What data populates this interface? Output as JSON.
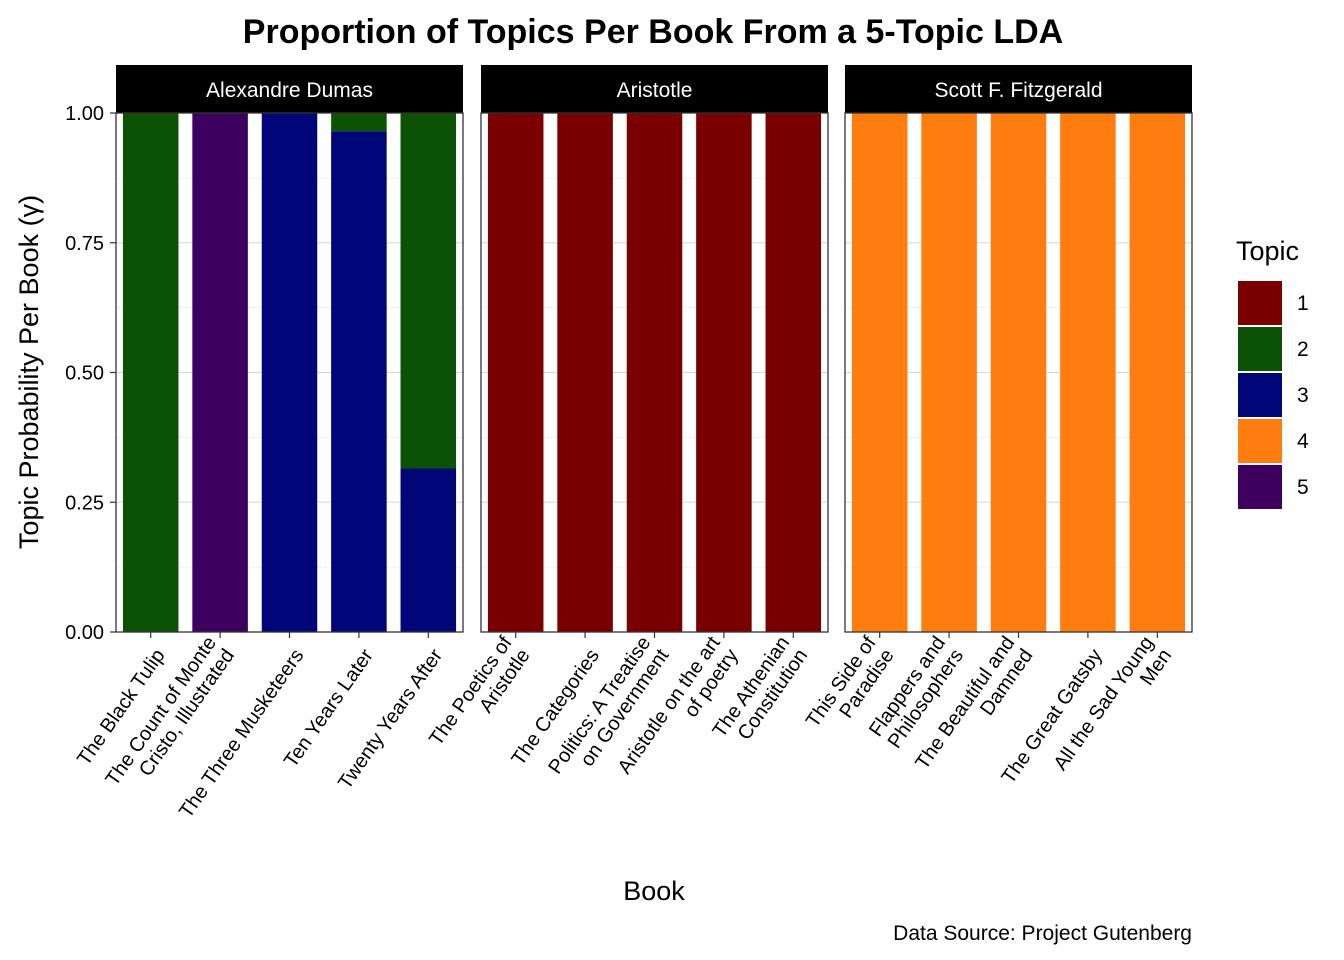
{
  "chart_data": {
    "type": "bar",
    "stacked": true,
    "title": "Proportion of Topics Per Book From a 5-Topic LDA",
    "xlabel": "Book",
    "ylabel": "Topic Probability Per Book (γ)",
    "caption": "Data Source: Project Gutenberg",
    "ylim": [
      0,
      1
    ],
    "yticks": [
      "0.00",
      "0.25",
      "0.50",
      "0.75",
      "1.00"
    ],
    "grid": true,
    "legend": {
      "title": "Topic",
      "position": "right",
      "items": [
        {
          "label": "1",
          "color": "#7A0000"
        },
        {
          "label": "2",
          "color": "#0B5204"
        },
        {
          "label": "3",
          "color": "#000577"
        },
        {
          "label": "4",
          "color": "#FF7D0E"
        },
        {
          "label": "5",
          "color": "#3D005E"
        }
      ]
    },
    "facets": [
      {
        "name": "Alexandre Dumas",
        "books": [
          {
            "lines": [
              "The Black Tulip"
            ],
            "stack": [
              {
                "topic": "2",
                "value": 1.0
              }
            ]
          },
          {
            "lines": [
              "The Count of Monte",
              "Cristo, Illustrated"
            ],
            "stack": [
              {
                "topic": "5",
                "value": 1.0
              }
            ]
          },
          {
            "lines": [
              "The Three Musketeers"
            ],
            "stack": [
              {
                "topic": "3",
                "value": 1.0
              }
            ]
          },
          {
            "lines": [
              "Ten Years Later"
            ],
            "stack": [
              {
                "topic": "3",
                "value": 0.965
              },
              {
                "topic": "2",
                "value": 0.035
              }
            ]
          },
          {
            "lines": [
              "Twenty Years After"
            ],
            "stack": [
              {
                "topic": "3",
                "value": 0.315
              },
              {
                "topic": "2",
                "value": 0.685
              }
            ]
          }
        ]
      },
      {
        "name": "Aristotle",
        "books": [
          {
            "lines": [
              "The Poetics of",
              "Aristotle"
            ],
            "stack": [
              {
                "topic": "1",
                "value": 1.0
              }
            ]
          },
          {
            "lines": [
              "The Categories"
            ],
            "stack": [
              {
                "topic": "1",
                "value": 1.0
              }
            ]
          },
          {
            "lines": [
              "Politics: A Treatise",
              "on Government"
            ],
            "stack": [
              {
                "topic": "1",
                "value": 1.0
              }
            ]
          },
          {
            "lines": [
              "Aristotle on the art",
              "of poetry"
            ],
            "stack": [
              {
                "topic": "1",
                "value": 1.0
              }
            ]
          },
          {
            "lines": [
              "The Athenian",
              "Constitution"
            ],
            "stack": [
              {
                "topic": "1",
                "value": 1.0
              }
            ]
          }
        ]
      },
      {
        "name": "Scott F. Fitzgerald",
        "books": [
          {
            "lines": [
              "This Side of",
              "Paradise"
            ],
            "stack": [
              {
                "topic": "4",
                "value": 1.0
              }
            ]
          },
          {
            "lines": [
              "Flappers and",
              "Philosophers"
            ],
            "stack": [
              {
                "topic": "4",
                "value": 1.0
              }
            ]
          },
          {
            "lines": [
              "The Beautiful and",
              "Damned"
            ],
            "stack": [
              {
                "topic": "4",
                "value": 1.0
              }
            ]
          },
          {
            "lines": [
              "The Great Gatsby"
            ],
            "stack": [
              {
                "topic": "4",
                "value": 1.0
              }
            ]
          },
          {
            "lines": [
              "All the Sad Young",
              "Men"
            ],
            "stack": [
              {
                "topic": "4",
                "value": 1.0
              }
            ]
          }
        ]
      }
    ]
  }
}
